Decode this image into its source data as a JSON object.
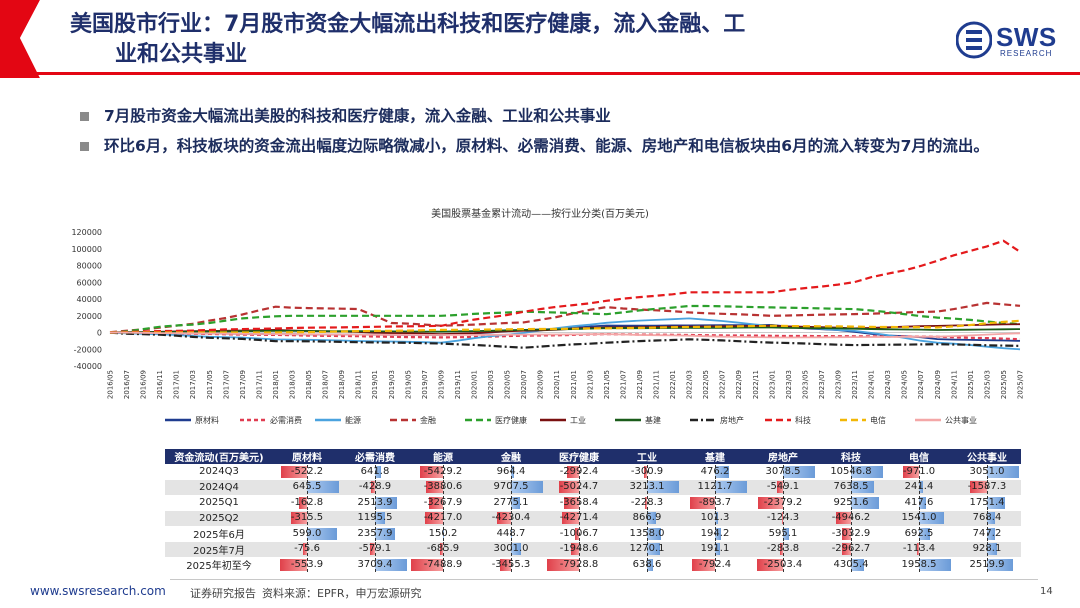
{
  "header": {
    "title_line1": "美国股市行业：7月股市资金大幅流出科技和医疗健康，流入金融、工",
    "title_line2": "业和公共事业",
    "logo_text": "SWS",
    "logo_sub": "RESEARCH",
    "accent": "#e30613",
    "title_color": "#1f2f6b"
  },
  "bullets": [
    "7月股市资金大幅流出美股的科技和医疗健康，流入金融、工业和公共事业",
    "环比6月，科技板块的资金流出幅度边际略微减小，原材料、必需消费、能源、房地产和电信板块由6月的流入转变为7月的流出。"
  ],
  "chart_data": {
    "type": "line",
    "title": "美国股票基金累计流动——按行业分类(百万美元)",
    "ylim": [
      -40000,
      120000
    ],
    "yticks": [
      "120000",
      "100000",
      "80000",
      "60000",
      "40000",
      "20000",
      "0",
      "-20000",
      "-40000"
    ],
    "x": [
      "2016/05",
      "2016/07",
      "2016/09",
      "2016/11",
      "2017/01",
      "2017/03",
      "2017/05",
      "2017/07",
      "2017/09",
      "2017/11",
      "2018/01",
      "2018/03",
      "2018/05",
      "2018/07",
      "2018/09",
      "2018/11",
      "2019/01",
      "2019/03",
      "2019/05",
      "2019/07",
      "2019/09",
      "2019/11",
      "2020/01",
      "2020/03",
      "2020/05",
      "2020/07",
      "2020/09",
      "2020/11",
      "2021/01",
      "2021/03",
      "2021/05",
      "2021/07",
      "2021/09",
      "2021/11",
      "2022/01",
      "2022/03",
      "2022/05",
      "2022/07",
      "2022/09",
      "2022/11",
      "2023/01",
      "2023/03",
      "2023/05",
      "2023/07",
      "2023/09",
      "2023/11",
      "2024/01",
      "2024/03",
      "2024/05",
      "2024/07",
      "2024/09",
      "2024/11",
      "2025/01",
      "2025/03",
      "2025/05",
      "2025/07"
    ],
    "series": [
      {
        "name": "原材料",
        "color": "#1f3c8f",
        "dash": "solid",
        "keys": [
          [
            0,
            0
          ],
          [
            10,
            -2000
          ],
          [
            20,
            -3000
          ],
          [
            30,
            8000
          ],
          [
            40,
            9000
          ],
          [
            50,
            -8000
          ],
          [
            55,
            -10000
          ]
        ]
      },
      {
        "name": "必需消费",
        "color": "#e03c50",
        "dash": "4,3",
        "keys": [
          [
            0,
            0
          ],
          [
            10,
            -3000
          ],
          [
            20,
            -6000
          ],
          [
            30,
            -2000
          ],
          [
            40,
            -4000
          ],
          [
            50,
            -5000
          ],
          [
            55,
            -8000
          ]
        ]
      },
      {
        "name": "能源",
        "color": "#4aa3df",
        "dash": "solid",
        "keys": [
          [
            0,
            0
          ],
          [
            10,
            -8000
          ],
          [
            20,
            -12000
          ],
          [
            25,
            0
          ],
          [
            30,
            12000
          ],
          [
            35,
            17000
          ],
          [
            40,
            8000
          ],
          [
            45,
            2000
          ],
          [
            50,
            -12000
          ],
          [
            55,
            -20000
          ]
        ]
      },
      {
        "name": "金融",
        "color": "#b83232",
        "dash": "7,4",
        "keys": [
          [
            0,
            0
          ],
          [
            5,
            10000
          ],
          [
            10,
            30000
          ],
          [
            15,
            28000
          ],
          [
            17,
            12000
          ],
          [
            20,
            8000
          ],
          [
            25,
            12000
          ],
          [
            30,
            30000
          ],
          [
            35,
            24000
          ],
          [
            40,
            20000
          ],
          [
            45,
            22000
          ],
          [
            50,
            25000
          ],
          [
            53,
            35000
          ],
          [
            55,
            32000
          ]
        ]
      },
      {
        "name": "医疗健康",
        "color": "#2ca02c",
        "dash": "7,4",
        "keys": [
          [
            0,
            0
          ],
          [
            10,
            20000
          ],
          [
            20,
            20000
          ],
          [
            25,
            25000
          ],
          [
            30,
            22000
          ],
          [
            35,
            32000
          ],
          [
            40,
            30000
          ],
          [
            45,
            28000
          ],
          [
            50,
            18000
          ],
          [
            55,
            10000
          ]
        ]
      },
      {
        "name": "工业",
        "color": "#7a1010",
        "dash": "solid",
        "keys": [
          [
            0,
            0
          ],
          [
            10,
            3000
          ],
          [
            20,
            -2000
          ],
          [
            30,
            6000
          ],
          [
            40,
            8000
          ],
          [
            45,
            5000
          ],
          [
            50,
            8000
          ],
          [
            55,
            10000
          ]
        ]
      },
      {
        "name": "基建",
        "color": "#1a5c1a",
        "dash": "solid",
        "keys": [
          [
            0,
            0
          ],
          [
            10,
            2000
          ],
          [
            20,
            1000
          ],
          [
            30,
            5000
          ],
          [
            40,
            6000
          ],
          [
            50,
            3000
          ],
          [
            55,
            4000
          ]
        ]
      },
      {
        "name": "房地产",
        "color": "#222222",
        "dash": "8,3,2,3",
        "keys": [
          [
            0,
            0
          ],
          [
            10,
            -10000
          ],
          [
            20,
            -13000
          ],
          [
            25,
            -18000
          ],
          [
            30,
            -12000
          ],
          [
            35,
            -8000
          ],
          [
            40,
            -12000
          ],
          [
            45,
            -15000
          ],
          [
            50,
            -14000
          ],
          [
            55,
            -16000
          ]
        ]
      },
      {
        "name": "科技",
        "color": "#e41a1c",
        "dash": "7,4",
        "keys": [
          [
            0,
            0
          ],
          [
            10,
            5000
          ],
          [
            20,
            8000
          ],
          [
            25,
            25000
          ],
          [
            30,
            38000
          ],
          [
            35,
            48000
          ],
          [
            40,
            48000
          ],
          [
            45,
            60000
          ],
          [
            50,
            85000
          ],
          [
            54,
            110000
          ],
          [
            55,
            96000
          ]
        ]
      },
      {
        "name": "电信",
        "color": "#f2b705",
        "dash": "7,4",
        "keys": [
          [
            0,
            0
          ],
          [
            10,
            0
          ],
          [
            20,
            3000
          ],
          [
            30,
            5000
          ],
          [
            40,
            8000
          ],
          [
            50,
            6000
          ],
          [
            55,
            14000
          ]
        ]
      },
      {
        "name": "公共事业",
        "color": "#f4a7a7",
        "dash": "solid",
        "keys": [
          [
            0,
            0
          ],
          [
            10,
            -2000
          ],
          [
            20,
            -3000
          ],
          [
            30,
            -2000
          ],
          [
            40,
            -6000
          ],
          [
            50,
            -5000
          ],
          [
            55,
            -1000
          ]
        ]
      }
    ]
  },
  "table": {
    "headers": [
      "资金流动(百万美元)",
      "原材料",
      "必需消费",
      "能源",
      "金融",
      "医疗健康",
      "工业",
      "基建",
      "房地产",
      "科技",
      "电信",
      "公共事业"
    ],
    "rows": [
      {
        "label": "2024Q3",
        "cells": [
          "-522.2",
          "641.8",
          "-5429.2",
          "964.4",
          "-2992.4",
          "-300.9",
          "476.2",
          "3078.5",
          "10546.8",
          "-971.0",
          "3051.0"
        ]
      },
      {
        "label": "2024Q4",
        "cells": [
          "645.5",
          "-428.9",
          "-3880.6",
          "9707.5",
          "-5024.7",
          "3213.1",
          "1121.7",
          "-549.1",
          "7638.5",
          "241.4",
          "-1587.3"
        ]
      },
      {
        "label": "2025Q1",
        "cells": [
          "-162.8",
          "2513.9",
          "-3267.9",
          "2775.1",
          "-3658.4",
          "-228.3",
          "-893.7",
          "-2379.2",
          "9251.6",
          "417.6",
          "1751.4"
        ]
      },
      {
        "label": "2025Q2",
        "cells": [
          "-315.5",
          "1195.5",
          "-4217.0",
          "-4230.4",
          "-4271.4",
          "866.9",
          "101.3",
          "-124.3",
          "-4946.2",
          "1541.0",
          "768.4"
        ]
      },
      {
        "label": "2025年6月",
        "cells": [
          "599.0",
          "2357.9",
          "150.2",
          "448.7",
          "-1006.7",
          "1358.0",
          "194.2",
          "595.1",
          "-3032.9",
          "692.5",
          "747.2"
        ]
      },
      {
        "label": "2025年7月",
        "cells": [
          "-75.6",
          "-579.1",
          "-685.9",
          "3001.0",
          "-1948.6",
          "1270.1",
          "191.1",
          "-283.8",
          "-2962.7",
          "-113.4",
          "928.1"
        ]
      },
      {
        "label": "2025年初至今",
        "cells": [
          "-553.9",
          "3709.4",
          "-7488.9",
          "-3455.3",
          "-7928.8",
          "638.6",
          "-792.4",
          "-2503.4",
          "4305.4",
          "1958.5",
          "2519.9"
        ]
      }
    ]
  },
  "footer": {
    "site": "www.swsresearch.com",
    "report": "证券研究报告",
    "source": "资料来源：EPFR，申万宏源研究",
    "page": "14"
  }
}
